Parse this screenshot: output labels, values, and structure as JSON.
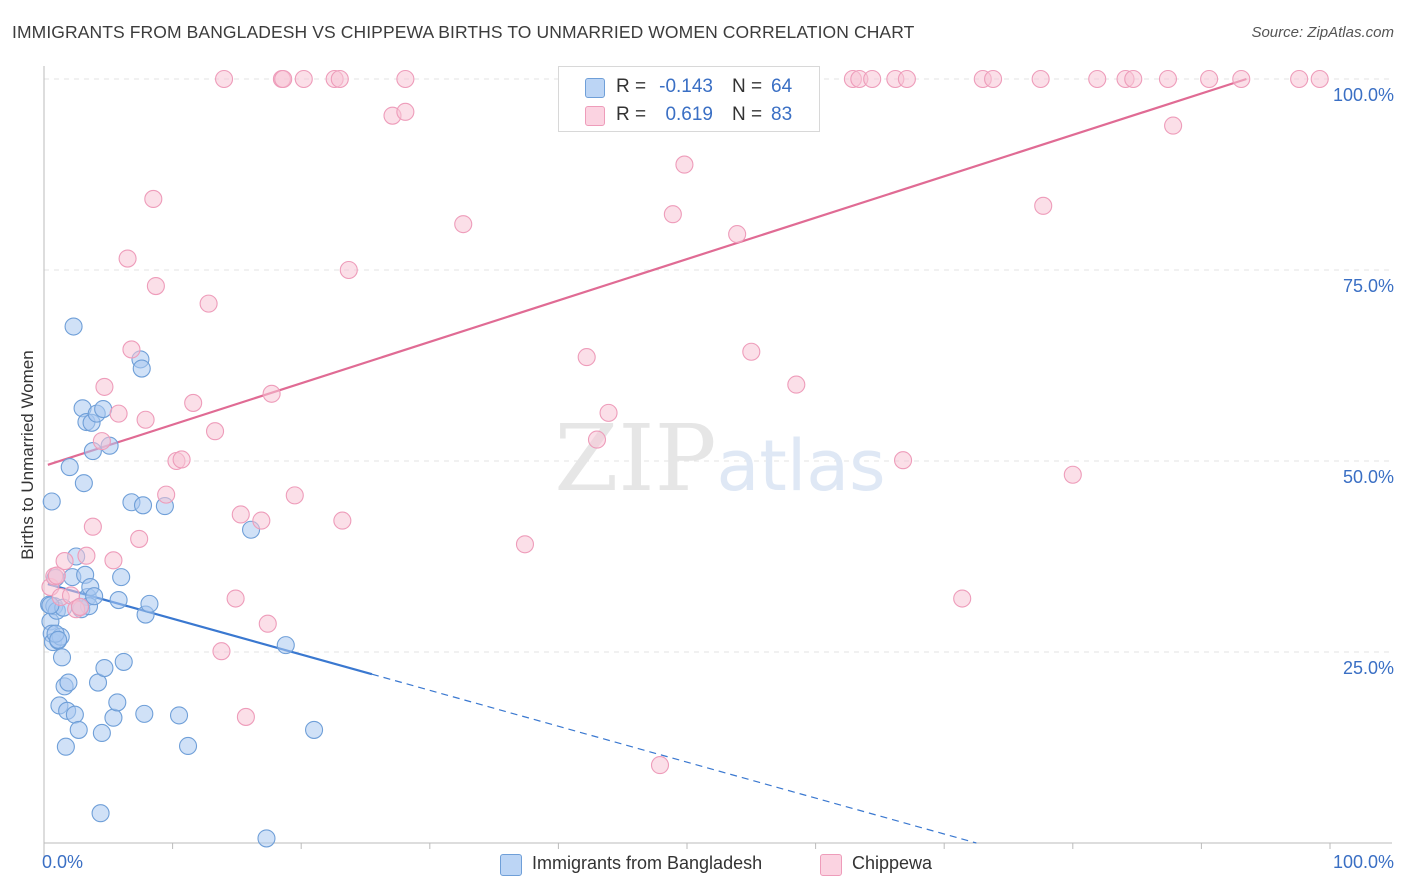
{
  "chart_data": {
    "type": "scatter",
    "title": "IMMIGRANTS FROM BANGLADESH VS CHIPPEWA BIRTHS TO UNMARRIED WOMEN CORRELATION CHART",
    "source": "Source: ZipAtlas.com",
    "xlabel": "",
    "ylabel": "Births to Unmarried Women",
    "xlim": [
      0,
      100
    ],
    "ylim": [
      0,
      100
    ],
    "x_ticks": [
      "0.0%",
      "100.0%"
    ],
    "y_ticks": [
      "25.0%",
      "50.0%",
      "75.0%",
      "100.0%"
    ],
    "legend_position": "top-center",
    "watermark": "ZIPatlas",
    "series": [
      {
        "name": "Immigrants from Bangladesh",
        "color": "#a9c8f0",
        "stroke": "#6f9fd8",
        "line_color": "#3a78d0",
        "R": "-0.143",
        "N": "64",
        "trend": {
          "x0": 0.3,
          "y0": 33.9,
          "x1": 25.5,
          "y1": 22.1,
          "dash_x1": 72.5,
          "dash_y1": 0
        },
        "points": [
          [
            0.4,
            31.2
          ],
          [
            0.5,
            29.0
          ],
          [
            0.6,
            27.4
          ],
          [
            0.7,
            26.3
          ],
          [
            0.8,
            31.0
          ],
          [
            0.9,
            34.7
          ],
          [
            1.0,
            30.4
          ],
          [
            1.1,
            26.5
          ],
          [
            1.2,
            18.0
          ],
          [
            1.3,
            27.0
          ],
          [
            1.4,
            24.3
          ],
          [
            1.5,
            30.8
          ],
          [
            1.6,
            20.5
          ],
          [
            1.7,
            12.6
          ],
          [
            1.8,
            17.3
          ],
          [
            1.9,
            21.0
          ],
          [
            2.0,
            49.2
          ],
          [
            2.2,
            34.8
          ],
          [
            2.3,
            67.6
          ],
          [
            2.4,
            16.8
          ],
          [
            2.5,
            37.5
          ],
          [
            2.7,
            14.8
          ],
          [
            2.9,
            30.6
          ],
          [
            3.0,
            56.9
          ],
          [
            3.1,
            47.1
          ],
          [
            3.2,
            35.1
          ],
          [
            3.3,
            55.1
          ],
          [
            3.4,
            32.2
          ],
          [
            3.5,
            31.0
          ],
          [
            3.6,
            33.5
          ],
          [
            3.7,
            55.0
          ],
          [
            3.8,
            51.3
          ],
          [
            3.9,
            32.3
          ],
          [
            4.1,
            56.2
          ],
          [
            4.2,
            21.0
          ],
          [
            4.4,
            3.9
          ],
          [
            4.5,
            14.4
          ],
          [
            4.6,
            56.8
          ],
          [
            4.7,
            22.9
          ],
          [
            5.1,
            52.0
          ],
          [
            5.4,
            16.4
          ],
          [
            5.7,
            18.4
          ],
          [
            5.8,
            31.8
          ],
          [
            6.0,
            34.8
          ],
          [
            6.2,
            23.7
          ],
          [
            6.8,
            44.6
          ],
          [
            7.5,
            63.3
          ],
          [
            7.6,
            62.1
          ],
          [
            7.7,
            44.2
          ],
          [
            7.8,
            16.9
          ],
          [
            7.9,
            29.9
          ],
          [
            8.2,
            31.3
          ],
          [
            9.4,
            44.1
          ],
          [
            10.5,
            16.7
          ],
          [
            11.2,
            12.7
          ],
          [
            16.1,
            41.0
          ],
          [
            17.3,
            0.6
          ],
          [
            18.8,
            25.9
          ],
          [
            21.0,
            14.8
          ],
          [
            0.6,
            44.7
          ],
          [
            0.9,
            27.4
          ],
          [
            1.1,
            26.6
          ],
          [
            0.5,
            31.1
          ],
          [
            2.8,
            30.9
          ]
        ]
      },
      {
        "name": "Chippewa",
        "color": "#f8c4d6",
        "stroke": "#ee9cba",
        "line_color": "#e06b94",
        "R": "0.619",
        "N": "83",
        "trend": {
          "x0": 0.3,
          "y0": 49.5,
          "x1": 93.5,
          "y1": 100.0
        },
        "points": [
          [
            0.5,
            33.5
          ],
          [
            0.8,
            34.9
          ],
          [
            1.0,
            35.0
          ],
          [
            1.3,
            32.2
          ],
          [
            1.6,
            36.9
          ],
          [
            2.1,
            32.4
          ],
          [
            2.5,
            30.6
          ],
          [
            2.8,
            30.9
          ],
          [
            3.3,
            37.6
          ],
          [
            3.8,
            41.4
          ],
          [
            4.5,
            52.6
          ],
          [
            4.7,
            59.7
          ],
          [
            5.4,
            37.0
          ],
          [
            5.8,
            56.2
          ],
          [
            6.5,
            76.5
          ],
          [
            6.8,
            64.6
          ],
          [
            7.4,
            39.8
          ],
          [
            7.9,
            55.4
          ],
          [
            8.5,
            84.3
          ],
          [
            8.7,
            72.9
          ],
          [
            9.5,
            45.6
          ],
          [
            10.3,
            50.0
          ],
          [
            10.7,
            50.2
          ],
          [
            11.6,
            57.6
          ],
          [
            12.8,
            70.6
          ],
          [
            13.3,
            53.9
          ],
          [
            13.8,
            25.1
          ],
          [
            14.0,
            100.0
          ],
          [
            14.9,
            32.0
          ],
          [
            15.3,
            43.0
          ],
          [
            15.7,
            16.5
          ],
          [
            16.9,
            42.2
          ],
          [
            17.4,
            28.7
          ],
          [
            17.7,
            58.8
          ],
          [
            18.5,
            100.0
          ],
          [
            18.6,
            100.0
          ],
          [
            19.5,
            45.5
          ],
          [
            20.2,
            100.0
          ],
          [
            22.6,
            100.0
          ],
          [
            23.0,
            100.0
          ],
          [
            23.2,
            42.2
          ],
          [
            23.7,
            75.0
          ],
          [
            27.1,
            95.2
          ],
          [
            28.1,
            95.7
          ],
          [
            28.1,
            100.0
          ],
          [
            32.6,
            81.0
          ],
          [
            37.4,
            39.1
          ],
          [
            42.2,
            63.6
          ],
          [
            43.0,
            52.8
          ],
          [
            43.9,
            56.3
          ],
          [
            46.5,
            100.0
          ],
          [
            47.9,
            10.2
          ],
          [
            48.1,
            100.0
          ],
          [
            48.9,
            82.3
          ],
          [
            49.8,
            88.8
          ],
          [
            51.4,
            100.0
          ],
          [
            53.0,
            100.0
          ],
          [
            53.9,
            79.7
          ],
          [
            54.1,
            100.0
          ],
          [
            55.0,
            64.3
          ],
          [
            56.6,
            100.0
          ],
          [
            58.5,
            60.0
          ],
          [
            62.9,
            100.0
          ],
          [
            63.4,
            100.0
          ],
          [
            64.4,
            100.0
          ],
          [
            66.2,
            100.0
          ],
          [
            66.8,
            50.1
          ],
          [
            67.1,
            100.0
          ],
          [
            71.4,
            32.0
          ],
          [
            73.0,
            100.0
          ],
          [
            73.8,
            100.0
          ],
          [
            77.5,
            100.0
          ],
          [
            77.7,
            83.4
          ],
          [
            80.0,
            48.2
          ],
          [
            81.9,
            100.0
          ],
          [
            84.1,
            100.0
          ],
          [
            84.7,
            100.0
          ],
          [
            87.4,
            100.0
          ],
          [
            87.8,
            93.9
          ],
          [
            90.6,
            100.0
          ],
          [
            93.1,
            100.0
          ],
          [
            97.6,
            100.0
          ],
          [
            99.2,
            100.0
          ]
        ]
      }
    ]
  }
}
